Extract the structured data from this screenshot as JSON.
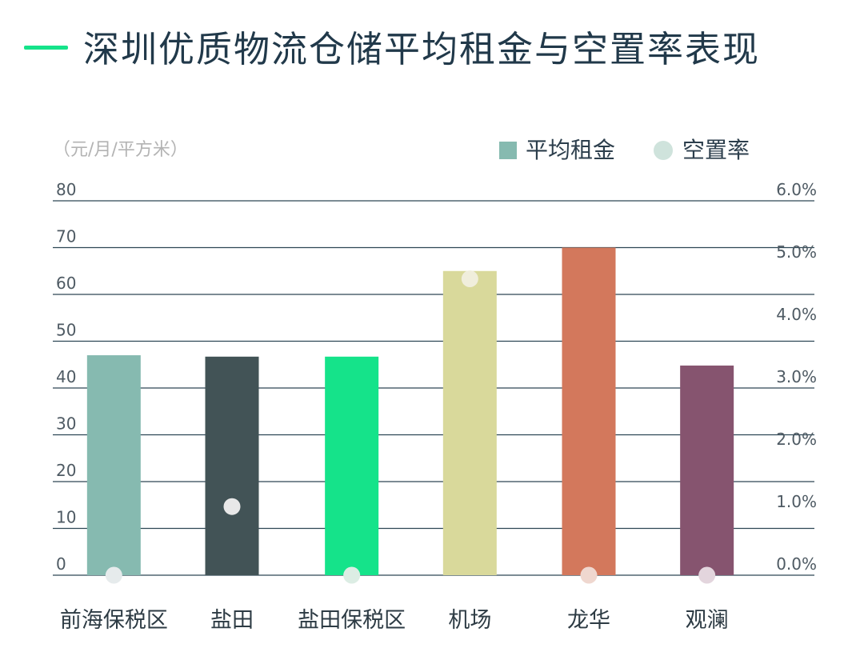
{
  "header": {
    "title": "深圳优质物流仓储平均租金与空置率表现",
    "accent_color": "#15e38a"
  },
  "chart_data": {
    "type": "bar",
    "title": "深圳优质物流仓储平均租金与空置率表现",
    "y_unit": "（元/月/平方米）",
    "categories": [
      "前海保税区",
      "盐田",
      "盐田保税区",
      "机场",
      "龙华",
      "观澜"
    ],
    "series": [
      {
        "name": "平均租金",
        "type": "bar",
        "axis": "left",
        "values": [
          47,
          46.7,
          46.7,
          65,
          70,
          44.8
        ],
        "colors": [
          "#86bab0",
          "#425356",
          "#15e38a",
          "#d9d99b",
          "#d3785c",
          "#86546f"
        ]
      },
      {
        "name": "空置率",
        "type": "scatter",
        "axis": "right",
        "unit": "%",
        "values": [
          0.0,
          1.1,
          0.0,
          4.75,
          0.0,
          0.0
        ],
        "colors": [
          "#e6ebec",
          "#e8e8e8",
          "#dcede4",
          "#f0eedc",
          "#efd7cf",
          "#e3d5dd"
        ]
      }
    ],
    "y_left": {
      "range": [
        0,
        80
      ],
      "ticks": [
        "0",
        "10",
        "20",
        "30",
        "40",
        "50",
        "60",
        "70",
        "80"
      ]
    },
    "y_right": {
      "range": [
        0,
        6
      ],
      "ticks": [
        "0.0%",
        "1.0%",
        "2.0%",
        "3.0%",
        "4.0%",
        "5.0%",
        "6.0%"
      ]
    },
    "grid": true,
    "grid_color": "#2d4654",
    "legend": {
      "position": "top-right",
      "items": [
        {
          "label": "平均租金",
          "marker": "square",
          "color": "#86bab0"
        },
        {
          "label": "空置率",
          "marker": "circle",
          "color": "#cfe3dc"
        }
      ]
    }
  }
}
